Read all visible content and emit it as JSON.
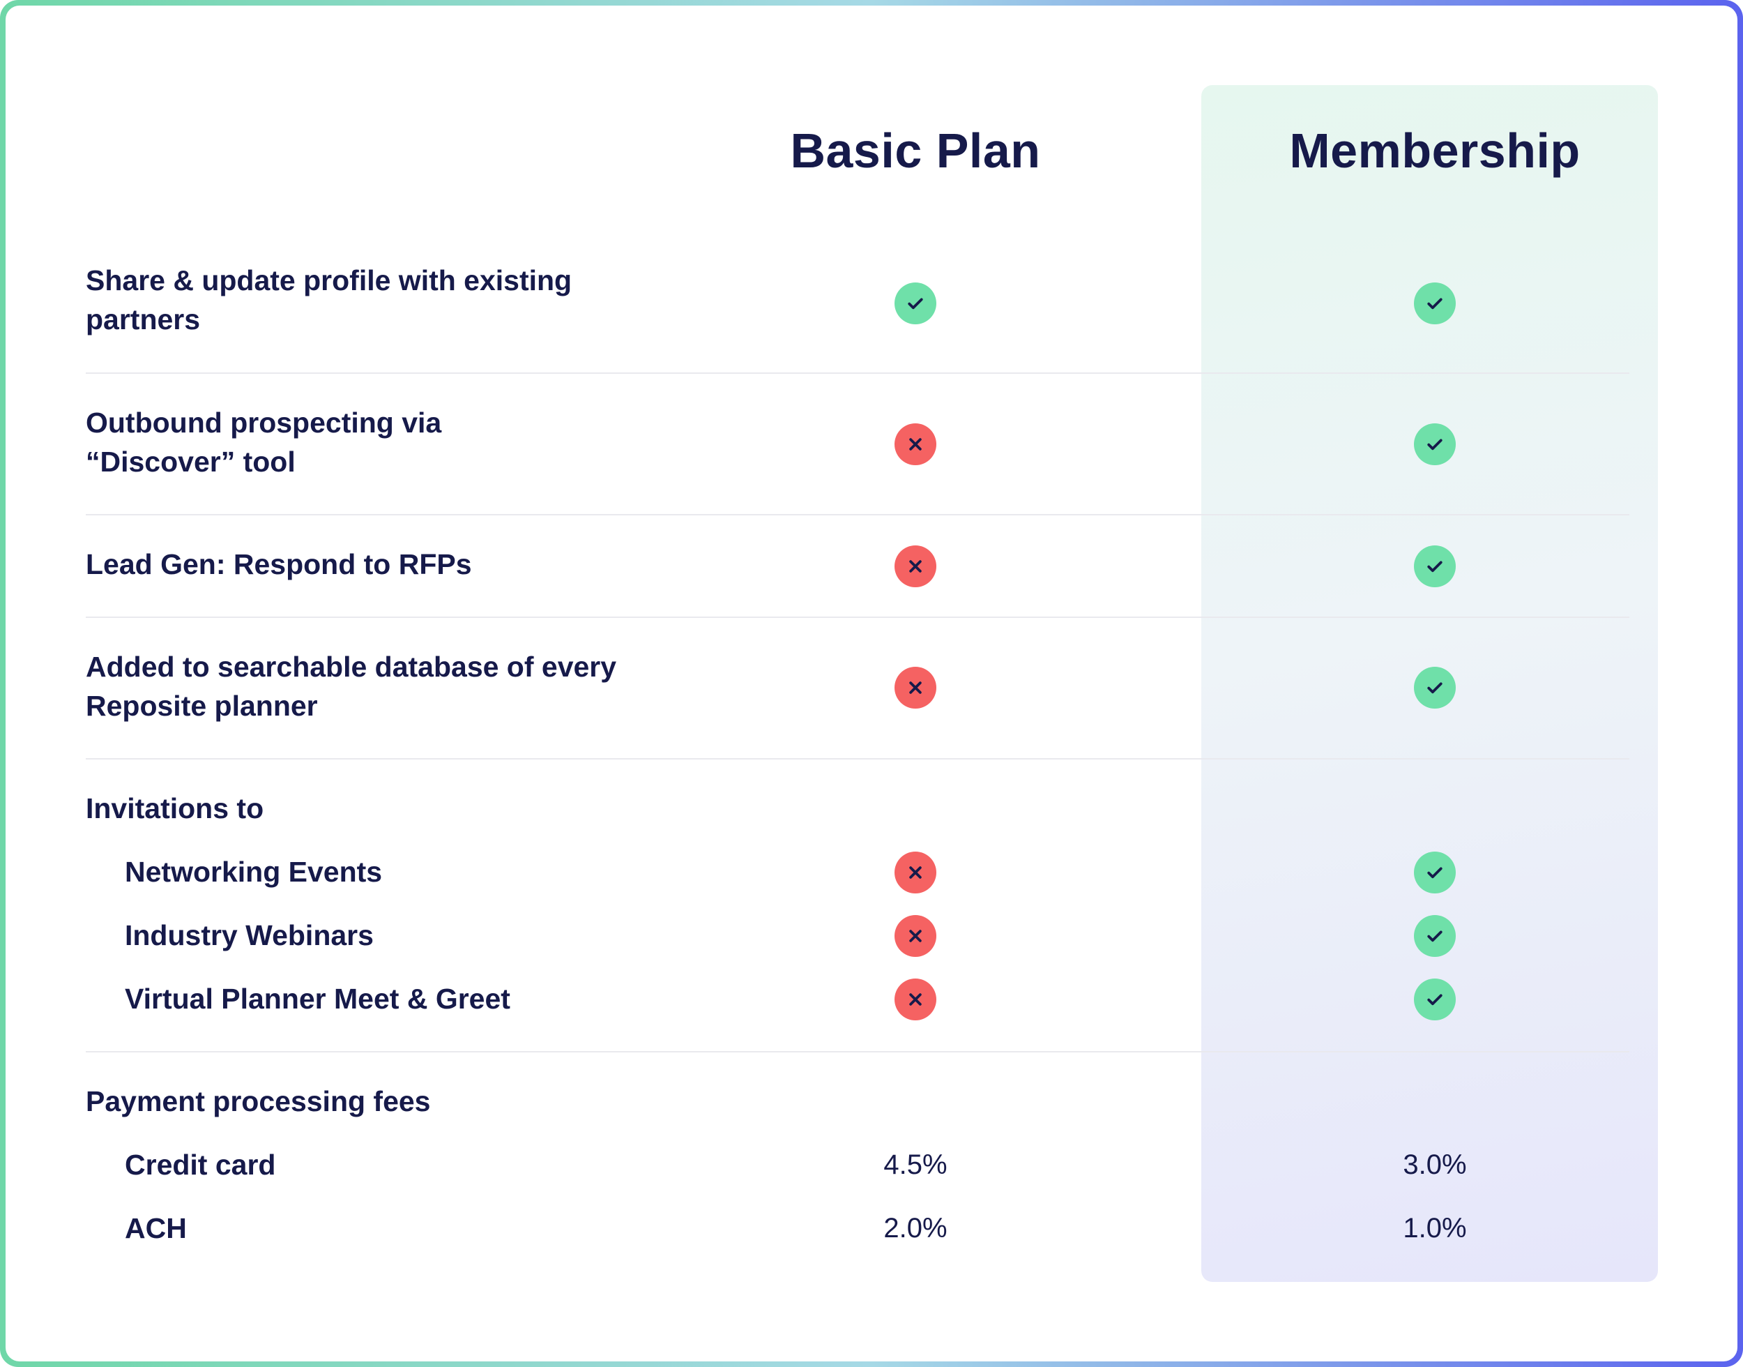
{
  "plans": [
    "Basic Plan",
    "Membership"
  ],
  "features": [
    {
      "label": "Share & update profile with existing partners",
      "basic": "check",
      "membership": "check"
    },
    {
      "label": "Outbound prospecting via “Discover” tool",
      "basic": "cross",
      "membership": "check"
    },
    {
      "label": "Lead Gen: Respond to RFPs",
      "basic": "cross",
      "membership": "check"
    },
    {
      "label": "Added to searchable database of every Reposite planner",
      "basic": "cross",
      "membership": "check"
    }
  ],
  "invitations": {
    "heading": "Invitations to",
    "items": [
      {
        "label": "Networking Events",
        "basic": "cross",
        "membership": "check"
      },
      {
        "label": "Industry Webinars",
        "basic": "cross",
        "membership": "check"
      },
      {
        "label": "Virtual Planner Meet & Greet",
        "basic": "cross",
        "membership": "check"
      }
    ]
  },
  "fees": {
    "heading": "Payment processing fees",
    "items": [
      {
        "label": "Credit card",
        "basic": "4.5%",
        "membership": "3.0%"
      },
      {
        "label": "ACH",
        "basic": "2.0%",
        "membership": "1.0%"
      }
    ]
  },
  "colors": {
    "check": "#6fe0a9",
    "cross": "#f56262",
    "text": "#161a4a"
  }
}
